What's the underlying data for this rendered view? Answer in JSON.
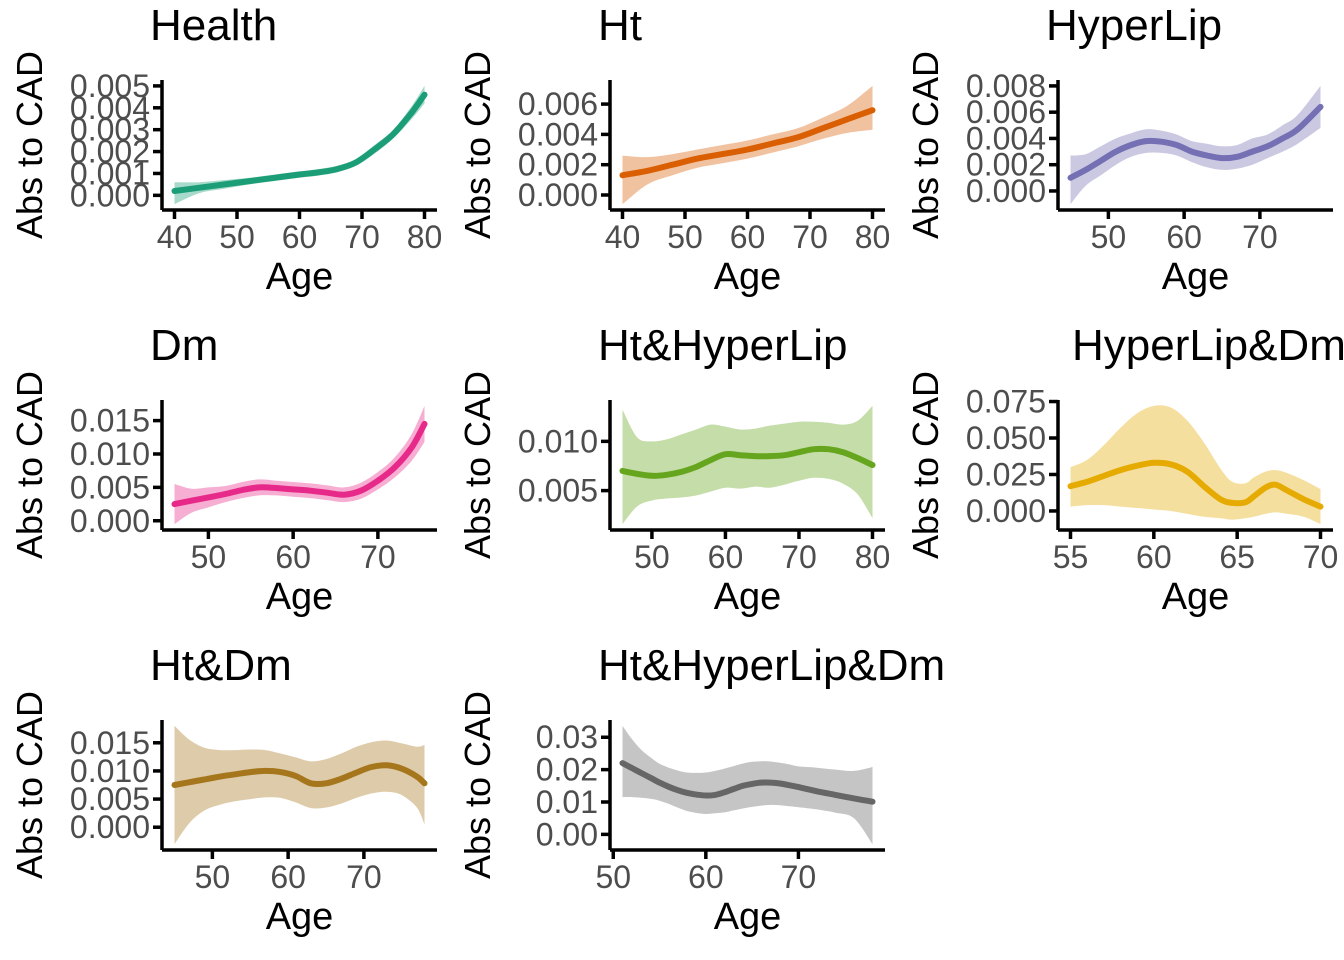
{
  "figure": {
    "x_axis_title": "Age",
    "y_axis_title": "Abs to CAD",
    "tick_label_color": "#4d4d4d",
    "axis_color": "#000000",
    "band_opacity": 0.38
  },
  "chart_data": {
    "type": "line",
    "layout": "3x3 grid, 8 panels, smoothed trend lines with confidence bands",
    "panels": [
      {
        "id": "health",
        "title": "Health",
        "xlabel": "Age",
        "ylabel": "Abs to CAD",
        "color": "#1B9E77",
        "x_ticks": [
          40,
          50,
          60,
          70,
          80
        ],
        "y_tick_labels": [
          "0.000",
          "0.001",
          "0.002",
          "0.003",
          "0.004",
          "0.005"
        ],
        "y_tick_values": [
          0,
          0.001,
          0.002,
          0.003,
          0.004,
          0.005
        ],
        "x": [
          40,
          44,
          48,
          52,
          56,
          60,
          63,
          66,
          69,
          72,
          75,
          78,
          80
        ],
        "y": [
          0.0002,
          0.00035,
          0.0005,
          0.00065,
          0.0008,
          0.00095,
          0.00105,
          0.0012,
          0.0015,
          0.0021,
          0.0028,
          0.0038,
          0.0046
        ],
        "lo": [
          -0.0004,
          0.0001,
          0.0003,
          0.0005,
          0.00065,
          0.0008,
          0.0009,
          0.00105,
          0.00135,
          0.0019,
          0.0026,
          0.0035,
          0.0042
        ],
        "hi": [
          0.0006,
          0.0006,
          0.0007,
          0.0008,
          0.00095,
          0.0011,
          0.0012,
          0.00135,
          0.00165,
          0.0023,
          0.003,
          0.0041,
          0.005
        ]
      },
      {
        "id": "ht",
        "title": "Ht",
        "xlabel": "Age",
        "ylabel": "Abs to CAD",
        "color": "#D95F02",
        "x_ticks": [
          40,
          50,
          60,
          70,
          80
        ],
        "y_tick_labels": [
          "0.000",
          "0.002",
          "0.004",
          "0.006"
        ],
        "y_tick_values": [
          0,
          0.002,
          0.004,
          0.006
        ],
        "x": [
          40,
          44,
          48,
          52,
          56,
          60,
          64,
          68,
          72,
          76,
          80
        ],
        "y": [
          0.0013,
          0.0016,
          0.002,
          0.0024,
          0.0027,
          0.003,
          0.0034,
          0.0038,
          0.0044,
          0.005,
          0.0056
        ],
        "lo": [
          -0.0006,
          0.0007,
          0.0013,
          0.0018,
          0.0021,
          0.0024,
          0.0028,
          0.0032,
          0.0037,
          0.0041,
          0.0043
        ],
        "hi": [
          0.0026,
          0.0025,
          0.0027,
          0.003,
          0.0033,
          0.0036,
          0.004,
          0.0044,
          0.0051,
          0.0059,
          0.0072
        ]
      },
      {
        "id": "hyperlip",
        "title": "HyperLip",
        "xlabel": "Age",
        "ylabel": "Abs to CAD",
        "color": "#7570B3",
        "x_ticks": [
          50,
          60,
          70
        ],
        "y_tick_labels": [
          "0.000",
          "0.002",
          "0.004",
          "0.006",
          "0.008"
        ],
        "y_tick_values": [
          0,
          0.002,
          0.004,
          0.006,
          0.008
        ],
        "x": [
          45,
          47,
          49,
          51,
          53,
          55,
          57,
          59,
          61,
          63,
          65,
          67,
          69,
          71,
          73,
          75,
          78
        ],
        "y": [
          0.001,
          0.0016,
          0.0023,
          0.003,
          0.0035,
          0.0038,
          0.00375,
          0.0035,
          0.003,
          0.0027,
          0.0025,
          0.0026,
          0.003,
          0.0034,
          0.004,
          0.0047,
          0.0064
        ],
        "lo": [
          -0.001,
          0.0004,
          0.0012,
          0.002,
          0.0026,
          0.0029,
          0.0029,
          0.0027,
          0.0022,
          0.0018,
          0.0016,
          0.0017,
          0.002,
          0.0025,
          0.003,
          0.0036,
          0.0048
        ],
        "hi": [
          0.0027,
          0.0028,
          0.0034,
          0.004,
          0.0044,
          0.0047,
          0.0046,
          0.0043,
          0.0038,
          0.0036,
          0.0034,
          0.0035,
          0.004,
          0.0043,
          0.005,
          0.0058,
          0.008
        ]
      },
      {
        "id": "dm",
        "title": "Dm",
        "xlabel": "Age",
        "ylabel": "Abs to CAD",
        "color": "#E7298A",
        "x_ticks": [
          50,
          60,
          70
        ],
        "y_tick_labels": [
          "0.000",
          "0.005",
          "0.010",
          "0.015"
        ],
        "y_tick_values": [
          0,
          0.005,
          0.01,
          0.015
        ],
        "x": [
          46,
          48,
          50,
          52,
          54,
          56,
          58,
          60,
          62,
          64,
          66,
          68,
          70,
          72,
          74,
          75.5
        ],
        "y": [
          0.0025,
          0.003,
          0.0035,
          0.004,
          0.0046,
          0.005,
          0.0049,
          0.0047,
          0.0045,
          0.0042,
          0.0039,
          0.0045,
          0.006,
          0.008,
          0.011,
          0.0145
        ],
        "lo": [
          -0.0005,
          0.0012,
          0.002,
          0.0028,
          0.0034,
          0.0038,
          0.0038,
          0.0036,
          0.0034,
          0.0031,
          0.0028,
          0.0033,
          0.0047,
          0.0065,
          0.009,
          0.0118
        ],
        "hi": [
          0.0055,
          0.0048,
          0.005,
          0.0052,
          0.0058,
          0.0062,
          0.006,
          0.0058,
          0.0056,
          0.0053,
          0.005,
          0.0057,
          0.0073,
          0.0095,
          0.013,
          0.0172
        ]
      },
      {
        "id": "ht-hyperlip",
        "title": "Ht&HyperLip",
        "xlabel": "Age",
        "ylabel": "Abs to CAD",
        "color": "#66A61E",
        "x_ticks": [
          50,
          60,
          70,
          80
        ],
        "y_tick_labels": [
          "0.005",
          "0.010"
        ],
        "y_tick_values": [
          0.005,
          0.01
        ],
        "x": [
          46,
          48,
          50,
          52,
          54,
          56,
          58,
          60,
          62,
          64,
          66,
          68,
          70,
          72,
          74,
          76,
          78,
          80
        ],
        "y": [
          0.007,
          0.0067,
          0.0065,
          0.0066,
          0.0069,
          0.0074,
          0.0081,
          0.0087,
          0.0086,
          0.0085,
          0.0085,
          0.0086,
          0.0089,
          0.0092,
          0.0092,
          0.0089,
          0.0083,
          0.0076
        ],
        "lo": [
          0.0016,
          0.0034,
          0.004,
          0.0042,
          0.0043,
          0.0045,
          0.0049,
          0.0053,
          0.0052,
          0.0054,
          0.0053,
          0.0056,
          0.006,
          0.0063,
          0.0062,
          0.0057,
          0.0046,
          0.0022
        ],
        "hi": [
          0.0132,
          0.0104,
          0.01,
          0.0102,
          0.0107,
          0.0112,
          0.0117,
          0.0115,
          0.0112,
          0.0113,
          0.0116,
          0.0118,
          0.012,
          0.012,
          0.0119,
          0.0117,
          0.0121,
          0.0136
        ]
      },
      {
        "id": "hyperlip-dm",
        "title": "HyperLip&Dm",
        "xlabel": "Age",
        "ylabel": "Abs to CAD",
        "color": "#E6AB02",
        "x_ticks": [
          55,
          60,
          65,
          70
        ],
        "y_tick_labels": [
          "0.000",
          "0.025",
          "0.050",
          "0.075"
        ],
        "y_tick_values": [
          0,
          0.025,
          0.05,
          0.075
        ],
        "x": [
          55,
          56,
          57,
          58,
          59,
          60,
          61,
          62,
          63,
          64,
          64.7,
          65.5,
          66,
          66.7,
          67.3,
          68,
          69,
          70
        ],
        "y": [
          0.017,
          0.02,
          0.024,
          0.028,
          0.031,
          0.033,
          0.032,
          0.027,
          0.017,
          0.008,
          0.0055,
          0.006,
          0.01,
          0.016,
          0.018,
          0.014,
          0.008,
          0.003
        ],
        "lo": [
          0.003,
          0.004,
          0.004,
          0.003,
          0.002,
          0.001,
          0,
          -0.002,
          -0.004,
          -0.005,
          -0.006,
          -0.005,
          -0.004,
          -0.002,
          -0.001,
          -0.002,
          -0.004,
          -0.009
        ],
        "hi": [
          0.03,
          0.035,
          0.045,
          0.057,
          0.067,
          0.072,
          0.071,
          0.062,
          0.047,
          0.029,
          0.02,
          0.019,
          0.023,
          0.027,
          0.028,
          0.026,
          0.021,
          0.015
        ]
      },
      {
        "id": "ht-dm",
        "title": "Ht&Dm",
        "xlabel": "Age",
        "ylabel": "Abs to CAD",
        "color": "#A6761D",
        "x_ticks": [
          50,
          60,
          70
        ],
        "y_tick_labels": [
          "0.000",
          "0.005",
          "0.010",
          "0.015"
        ],
        "y_tick_values": [
          0,
          0.005,
          0.01,
          0.015
        ],
        "x": [
          45,
          47,
          49,
          51,
          53,
          55,
          57,
          59,
          61,
          63,
          65,
          67,
          69,
          71,
          73,
          75,
          77,
          78
        ],
        "y": [
          0.0075,
          0.008,
          0.0085,
          0.009,
          0.0094,
          0.0098,
          0.01,
          0.0098,
          0.0091,
          0.0078,
          0.0078,
          0.0086,
          0.0097,
          0.0107,
          0.011,
          0.0104,
          0.009,
          0.0078
        ],
        "lo": [
          -0.003,
          0.0008,
          0.003,
          0.004,
          0.0046,
          0.005,
          0.0053,
          0.0052,
          0.0044,
          0.0034,
          0.0035,
          0.0042,
          0.0052,
          0.006,
          0.0063,
          0.0057,
          0.0035,
          0.0005
        ],
        "hi": [
          0.018,
          0.0155,
          0.0141,
          0.0137,
          0.0137,
          0.0138,
          0.0137,
          0.0131,
          0.0124,
          0.0117,
          0.0121,
          0.0131,
          0.0143,
          0.0151,
          0.0154,
          0.0149,
          0.0143,
          0.0146
        ]
      },
      {
        "id": "ht-hyperlip-dm",
        "title": "Ht&HyperLip&Dm",
        "xlabel": "Age",
        "ylabel": "Abs to CAD",
        "color": "#666666",
        "x_ticks": [
          50,
          60,
          70
        ],
        "y_tick_labels": [
          "0.00",
          "0.01",
          "0.02",
          "0.03"
        ],
        "y_tick_values": [
          0,
          0.01,
          0.02,
          0.03
        ],
        "x": [
          51,
          52,
          53,
          54,
          55,
          56,
          57,
          58,
          59,
          60,
          61,
          62,
          63,
          64,
          65,
          66,
          67,
          68,
          69,
          70,
          72,
          74,
          76,
          78
        ],
        "y": [
          0.022,
          0.0205,
          0.019,
          0.0175,
          0.016,
          0.0147,
          0.0136,
          0.0128,
          0.0123,
          0.012,
          0.0122,
          0.013,
          0.014,
          0.015,
          0.0156,
          0.016,
          0.016,
          0.0157,
          0.0152,
          0.0146,
          0.0133,
          0.0122,
          0.0111,
          0.0101
        ],
        "lo": [
          0.0115,
          0.0115,
          0.0113,
          0.011,
          0.0104,
          0.0094,
          0.0082,
          0.0072,
          0.0066,
          0.0063,
          0.0065,
          0.0068,
          0.0074,
          0.008,
          0.0085,
          0.0089,
          0.0091,
          0.009,
          0.0087,
          0.0084,
          0.0077,
          0.0067,
          0.005,
          -0.003
        ],
        "hi": [
          0.0335,
          0.0295,
          0.0262,
          0.0238,
          0.0218,
          0.0206,
          0.0197,
          0.0191,
          0.019,
          0.0191,
          0.0196,
          0.0203,
          0.0211,
          0.0219,
          0.0224,
          0.0226,
          0.0225,
          0.0221,
          0.0216,
          0.021,
          0.0206,
          0.02,
          0.0196,
          0.0208
        ]
      }
    ]
  }
}
